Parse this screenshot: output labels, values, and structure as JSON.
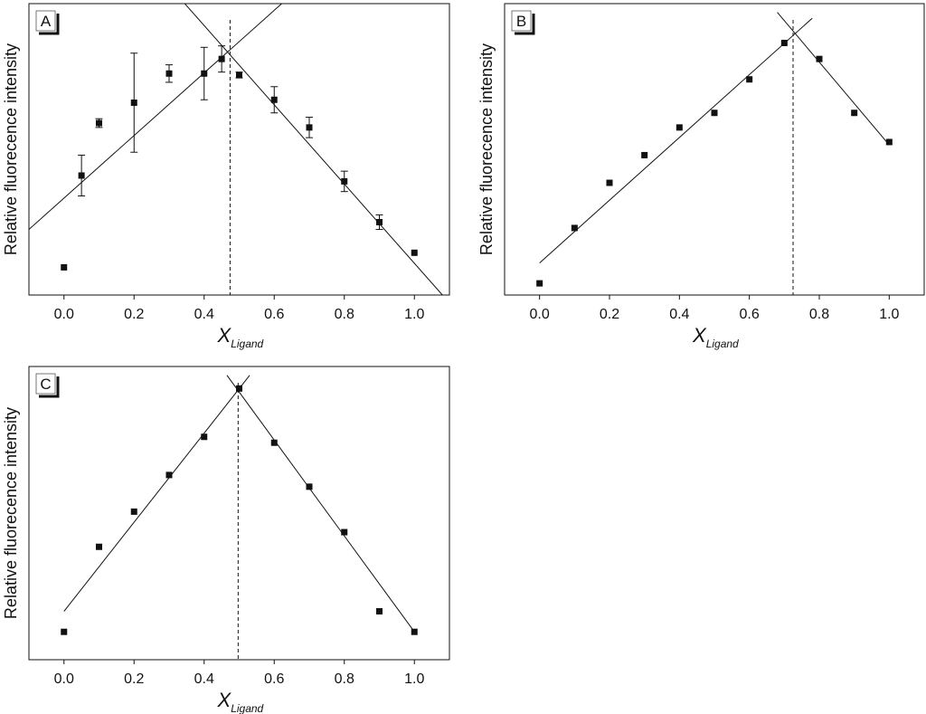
{
  "chart_data": [
    {
      "panel": "A",
      "type": "scatter",
      "ylabel": "Relative fluorecence intensity",
      "xlabel_symbol": "X",
      "xlabel_sub": "Ligand",
      "xlim": [
        -0.1,
        1.1
      ],
      "ylim": [
        0,
        1
      ],
      "xticks": [
        "0.0",
        "0.2",
        "0.4",
        "0.6",
        "0.8",
        "1.0"
      ],
      "xtick_values": [
        0,
        0.2,
        0.4,
        0.6,
        0.8,
        1.0
      ],
      "points": [
        {
          "x": 0.0,
          "y": 0.095
        },
        {
          "x": 0.05,
          "y": 0.41,
          "err": 0.07
        },
        {
          "x": 0.1,
          "y": 0.59,
          "err": 0.015
        },
        {
          "x": 0.2,
          "y": 0.66,
          "err": 0.17
        },
        {
          "x": 0.3,
          "y": 0.76,
          "err": 0.03
        },
        {
          "x": 0.4,
          "y": 0.76,
          "err": 0.09
        },
        {
          "x": 0.45,
          "y": 0.81,
          "err": 0.045
        },
        {
          "x": 0.5,
          "y": 0.755,
          "err": 0.01
        },
        {
          "x": 0.6,
          "y": 0.67,
          "err": 0.045
        },
        {
          "x": 0.7,
          "y": 0.575,
          "err": 0.035
        },
        {
          "x": 0.8,
          "y": 0.39,
          "err": 0.035
        },
        {
          "x": 0.9,
          "y": 0.25,
          "err": 0.025
        },
        {
          "x": 1.0,
          "y": 0.145
        }
      ],
      "fit_lines": [
        {
          "from": [
            -0.1,
            0.225
          ],
          "to": [
            0.64,
            1.02
          ]
        },
        {
          "from": [
            0.33,
            1.02
          ],
          "to": [
            1.08,
            0.0
          ]
        }
      ],
      "vline_x": 0.474
    },
    {
      "panel": "B",
      "type": "scatter",
      "ylabel": "Relative fluorecence intensity",
      "xlabel_symbol": "X",
      "xlabel_sub": "Ligand",
      "xlim": [
        -0.1,
        1.1
      ],
      "ylim": [
        0,
        1
      ],
      "xticks": [
        "0.0",
        "0.2",
        "0.4",
        "0.6",
        "0.8",
        "1.0"
      ],
      "xtick_values": [
        0,
        0.2,
        0.4,
        0.6,
        0.8,
        1.0
      ],
      "points": [
        {
          "x": 0.0,
          "y": 0.04
        },
        {
          "x": 0.1,
          "y": 0.23
        },
        {
          "x": 0.2,
          "y": 0.385
        },
        {
          "x": 0.3,
          "y": 0.48
        },
        {
          "x": 0.4,
          "y": 0.575
        },
        {
          "x": 0.5,
          "y": 0.625
        },
        {
          "x": 0.6,
          "y": 0.74
        },
        {
          "x": 0.7,
          "y": 0.865
        },
        {
          "x": 0.8,
          "y": 0.81
        },
        {
          "x": 0.9,
          "y": 0.625
        },
        {
          "x": 1.0,
          "y": 0.525
        }
      ],
      "fit_lines": [
        {
          "from": [
            0.0,
            0.11
          ],
          "to": [
            0.78,
            0.95
          ]
        },
        {
          "from": [
            0.68,
            0.97
          ],
          "to": [
            1.0,
            0.515
          ]
        }
      ],
      "vline_x": 0.725
    },
    {
      "panel": "C",
      "type": "scatter",
      "ylabel": "Relative fluorecence intensity",
      "xlabel_symbol": "X",
      "xlabel_sub": "Ligand",
      "xlim": [
        -0.1,
        1.1
      ],
      "ylim": [
        0,
        1
      ],
      "xticks": [
        "0.0",
        "0.2",
        "0.4",
        "0.6",
        "0.8",
        "1.0"
      ],
      "xtick_values": [
        0,
        0.2,
        0.4,
        0.6,
        0.8,
        1.0
      ],
      "points": [
        {
          "x": 0.0,
          "y": 0.095
        },
        {
          "x": 0.1,
          "y": 0.385
        },
        {
          "x": 0.2,
          "y": 0.505
        },
        {
          "x": 0.3,
          "y": 0.63
        },
        {
          "x": 0.4,
          "y": 0.76
        },
        {
          "x": 0.5,
          "y": 0.925
        },
        {
          "x": 0.6,
          "y": 0.74
        },
        {
          "x": 0.7,
          "y": 0.59
        },
        {
          "x": 0.8,
          "y": 0.435
        },
        {
          "x": 0.9,
          "y": 0.165
        },
        {
          "x": 1.0,
          "y": 0.095
        }
      ],
      "fit_lines": [
        {
          "from": [
            0.0,
            0.165
          ],
          "to": [
            0.53,
            0.97
          ]
        },
        {
          "from": [
            0.465,
            0.97
          ],
          "to": [
            1.0,
            0.095
          ]
        }
      ],
      "vline_x": 0.497
    }
  ]
}
